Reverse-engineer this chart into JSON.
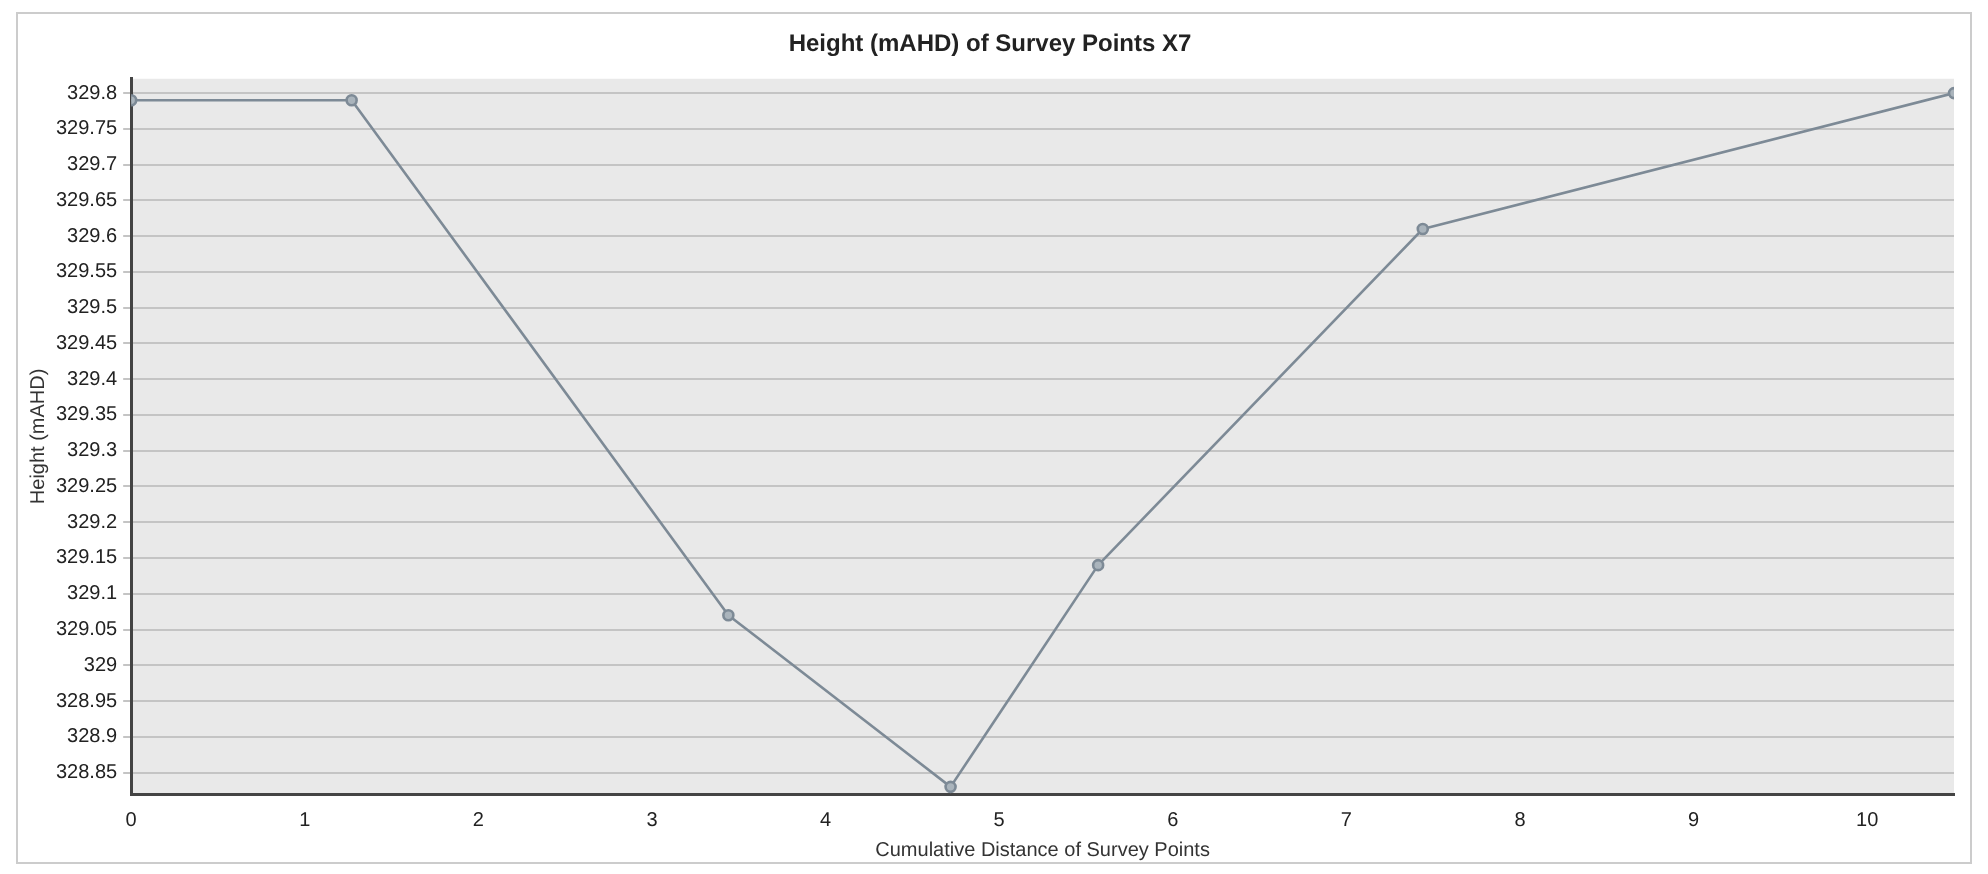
{
  "chart_data": {
    "type": "line",
    "title": "Height (mAHD) of Survey Points X7",
    "xlabel": "Cumulative Distance of Survey Points",
    "ylabel": "Height (mAHD)",
    "x": [
      0,
      1.27,
      3.44,
      4.72,
      5.57,
      7.44,
      10.5
    ],
    "series": [
      {
        "color": "#7d8a96",
        "values": [
          329.79,
          329.79,
          329.07,
          328.83,
          329.14,
          329.61,
          329.8
        ]
      }
    ],
    "xlim": [
      0,
      10.5
    ],
    "xticks": [
      0,
      1,
      2,
      3,
      4,
      5,
      6,
      7,
      8,
      9,
      10
    ],
    "ylim": [
      328.82,
      329.82
    ],
    "yticks": [
      328.85,
      328.9,
      328.95,
      329,
      329.05,
      329.1,
      329.15,
      329.2,
      329.25,
      329.3,
      329.35,
      329.4,
      329.45,
      329.5,
      329.55,
      329.6,
      329.65,
      329.7,
      329.75,
      329.8
    ],
    "grid": "y",
    "marker": "circle",
    "line_style": "solid",
    "legend": false
  }
}
